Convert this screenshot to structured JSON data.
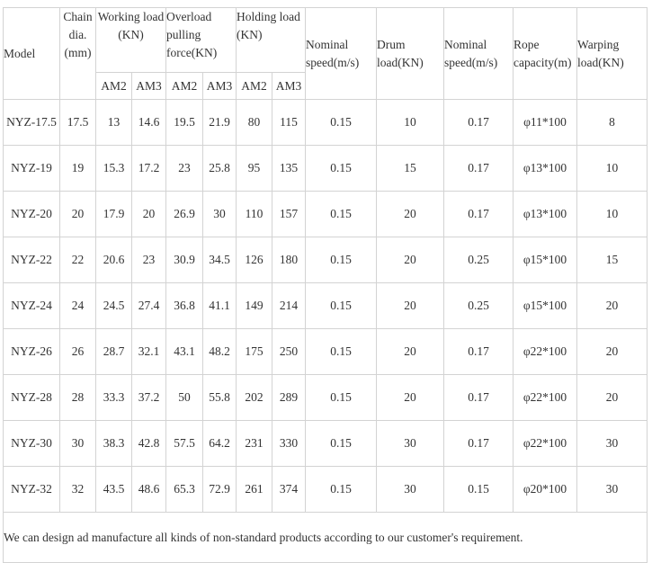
{
  "headers": {
    "model": "Model",
    "chain_dia": "Chain dia. (mm)",
    "working_load": "Working load (KN)",
    "overload_force": "Overload pulling force(KN)",
    "holding_load": "Holding load (KN)",
    "nominal_speed_1": "Nominal speed(m/s)",
    "drum_load": "Drum load(KN)",
    "nominal_speed_2": "Nominal speed(m/s)",
    "rope_capacity": "Rope capacity(m)",
    "warping_load": "Warping load(KN)",
    "sub": [
      "AM2",
      "AM3",
      "AM2",
      "AM3",
      "AM2",
      "AM3"
    ]
  },
  "rows": [
    [
      "NYZ-17.5",
      "17.5",
      "13",
      "14.6",
      "19.5",
      "21.9",
      "80",
      "115",
      "0.15",
      "10",
      "0.17",
      "φ11*100",
      "8"
    ],
    [
      "NYZ-19",
      "19",
      "15.3",
      "17.2",
      "23",
      "25.8",
      "95",
      "135",
      "0.15",
      "15",
      "0.17",
      "φ13*100",
      "10"
    ],
    [
      "NYZ-20",
      "20",
      "17.9",
      "20",
      "26.9",
      "30",
      "110",
      "157",
      "0.15",
      "20",
      "0.17",
      "φ13*100",
      "10"
    ],
    [
      "NYZ-22",
      "22",
      "20.6",
      "23",
      "30.9",
      "34.5",
      "126",
      "180",
      "0.15",
      "20",
      "0.25",
      "φ15*100",
      "15"
    ],
    [
      "NYZ-24",
      "24",
      "24.5",
      "27.4",
      "36.8",
      "41.1",
      "149",
      "214",
      "0.15",
      "20",
      "0.25",
      "φ15*100",
      "20"
    ],
    [
      "NYZ-26",
      "26",
      "28.7",
      "32.1",
      "43.1",
      "48.2",
      "175",
      "250",
      "0.15",
      "20",
      "0.17",
      "φ22*100",
      "20"
    ],
    [
      "NYZ-28",
      "28",
      "33.3",
      "37.2",
      "50",
      "55.8",
      "202",
      "289",
      "0.15",
      "20",
      "0.17",
      "φ22*100",
      "20"
    ],
    [
      "NYZ-30",
      "30",
      "38.3",
      "42.8",
      "57.5",
      "64.2",
      "231",
      "330",
      "0.15",
      "30",
      "0.17",
      "φ22*100",
      "30"
    ],
    [
      "NYZ-32",
      "32",
      "43.5",
      "48.6",
      "65.3",
      "72.9",
      "261",
      "374",
      "0.15",
      "30",
      "0.15",
      "φ20*100",
      "30"
    ]
  ],
  "footer_note": "We can design ad manufacture all kinds of non-standard products according to our customer's requirement."
}
